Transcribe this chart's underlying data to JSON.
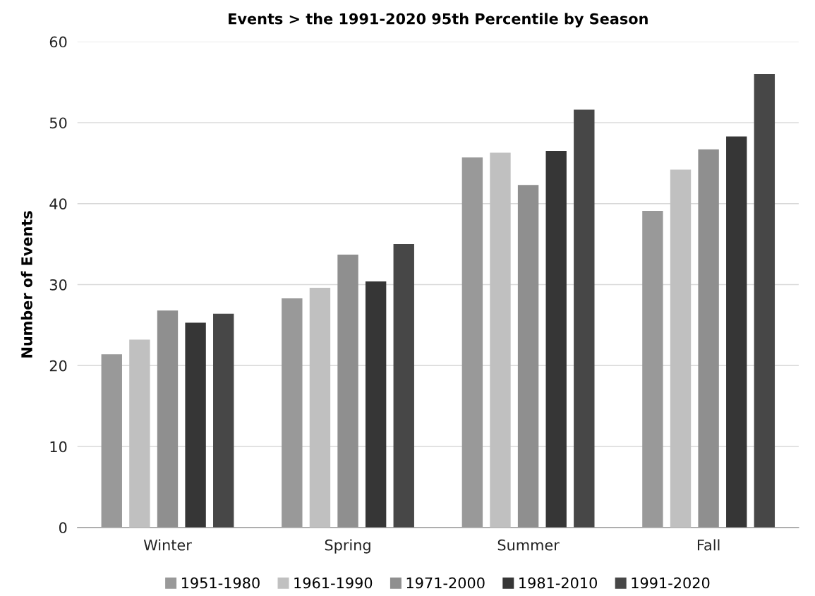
{
  "chart_data": {
    "type": "bar",
    "title": "Events > the 1991-2020 95th Percentile by Season",
    "ylabel": "Number of Events",
    "categories": [
      "Winter",
      "Spring",
      "Summer",
      "Fall"
    ],
    "series": [
      {
        "name": "1951-1980",
        "color": "#999999",
        "values": [
          21.4,
          28.3,
          45.7,
          39.1
        ]
      },
      {
        "name": "1961-1990",
        "color": "#c0c0c0",
        "values": [
          23.2,
          29.6,
          46.3,
          44.2
        ]
      },
      {
        "name": "1971-2000",
        "color": "#8f8f8f",
        "values": [
          26.8,
          33.7,
          42.3,
          46.7
        ]
      },
      {
        "name": "1981-2010",
        "color": "#363636",
        "values": [
          25.3,
          30.4,
          46.5,
          48.3
        ]
      },
      {
        "name": "1991-2020",
        "color": "#474747",
        "values": [
          26.4,
          35.0,
          51.6,
          56.0
        ]
      }
    ],
    "ylim": [
      0,
      60
    ],
    "yticks": [
      0,
      10,
      20,
      30,
      40,
      50,
      60
    ],
    "grid": "y",
    "legend": "bottom"
  }
}
